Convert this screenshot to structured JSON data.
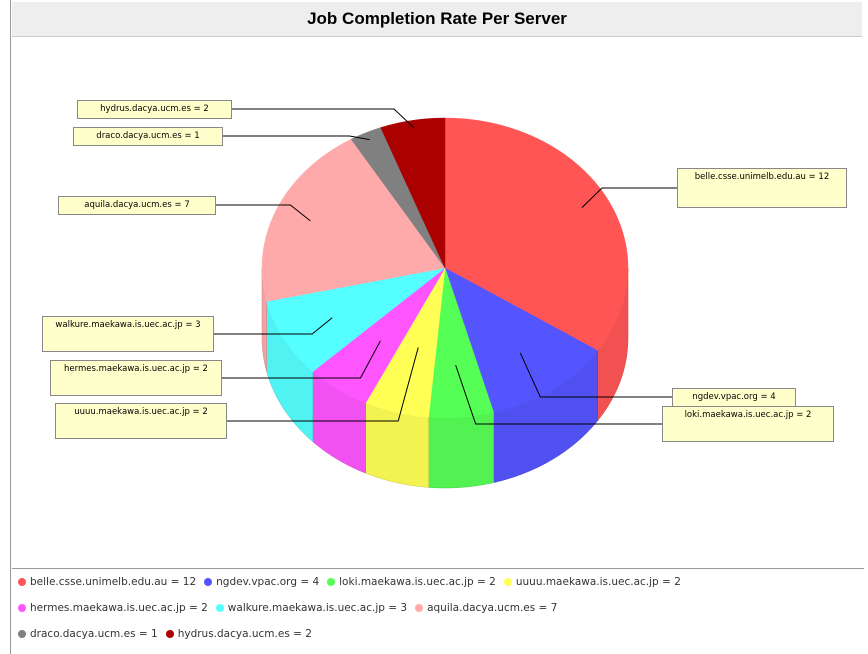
{
  "chart_data": {
    "type": "pie3d",
    "title": "Job Completion Rate Per Server",
    "values": [
      12,
      4,
      2,
      2,
      2,
      3,
      7,
      1,
      2
    ],
    "value_labels": [
      "belle.csse.unimelb.edu.au = 12",
      "ngdev.vpac.org = 4",
      "loki.maekawa.is.uec.ac.jp = 2",
      "uuuu.maekawa.is.uec.ac.jp = 2",
      "hermes.maekawa.is.uec.ac.jp = 2",
      "walkure.maekawa.is.uec.ac.jp = 3",
      "aquila.dacya.ucm.es = 7",
      "draco.dacya.ucm.es = 1",
      "hydrus.dacya.ucm.es = 2"
    ],
    "colors": [
      "#ff5555",
      "#5555ff",
      "#55ff55",
      "#ffff55",
      "#ff55ff",
      "#55ffff",
      "#ffaaaa",
      "#808080",
      "#aa0000"
    ],
    "legend": "bottom"
  }
}
